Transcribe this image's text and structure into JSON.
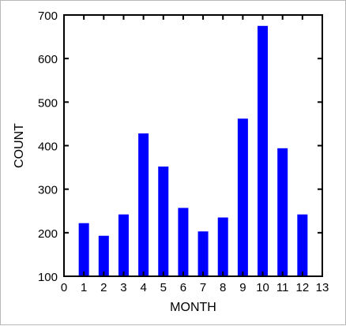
{
  "chart_data": {
    "type": "bar",
    "x": [
      1,
      2,
      3,
      4,
      5,
      6,
      7,
      8,
      9,
      10,
      11,
      12
    ],
    "values": [
      222,
      193,
      242,
      428,
      352,
      257,
      203,
      235,
      462,
      675,
      394,
      242
    ],
    "xlabel": "MONTH",
    "ylabel": "COUNT",
    "xlim": [
      0,
      13
    ],
    "ylim": [
      100,
      700
    ],
    "xticks": [
      "0",
      "1",
      "2",
      "3",
      "4",
      "5",
      "6",
      "7",
      "8",
      "9",
      "10",
      "11",
      "12",
      "13"
    ],
    "yticks": [
      "100",
      "200",
      "300",
      "400",
      "500",
      "600",
      "700"
    ],
    "grid": false,
    "bar_color": "#0000ff"
  }
}
